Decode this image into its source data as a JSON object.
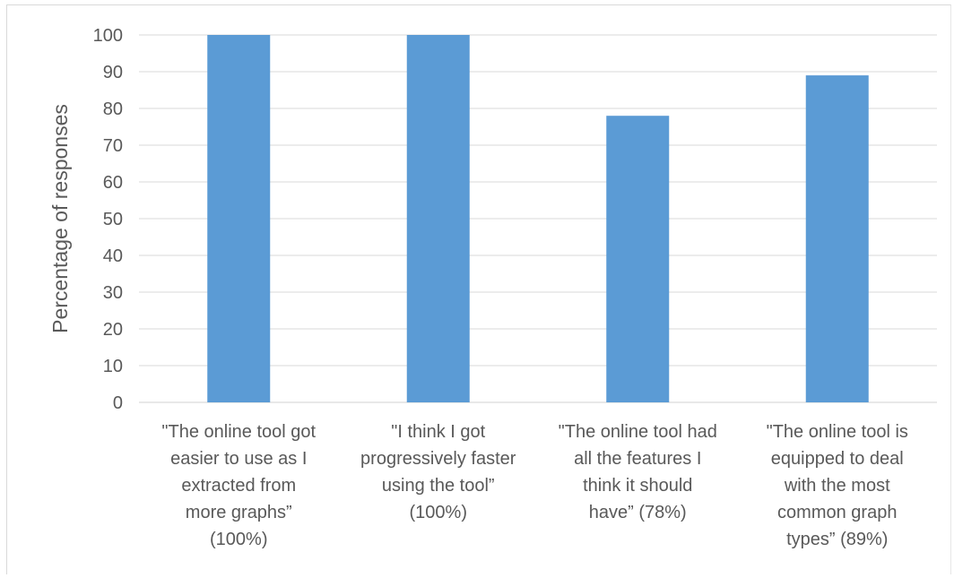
{
  "chart_data": {
    "type": "bar",
    "title": "",
    "xlabel": "",
    "ylabel": "Percentage of responses",
    "ylim": [
      0,
      100
    ],
    "yticks": [
      0,
      10,
      20,
      30,
      40,
      50,
      60,
      70,
      80,
      90,
      100
    ],
    "grid": true,
    "legend": "none",
    "bar_color": "#5B9BD5",
    "categories": [
      [
        "\"The online tool got",
        "easier to use as I",
        "extracted from",
        "more graphs”",
        "(100%)"
      ],
      [
        "\"I think I got",
        "progressively faster",
        "using the tool”",
        "(100%)"
      ],
      [
        "\"The online tool had",
        "all the features I",
        "think it should",
        "have” (78%)"
      ],
      [
        "\"The online tool is",
        "equipped  to deal",
        "with the most",
        "common graph",
        "types” (89%)"
      ]
    ],
    "values": [
      100,
      100,
      78,
      89
    ]
  }
}
